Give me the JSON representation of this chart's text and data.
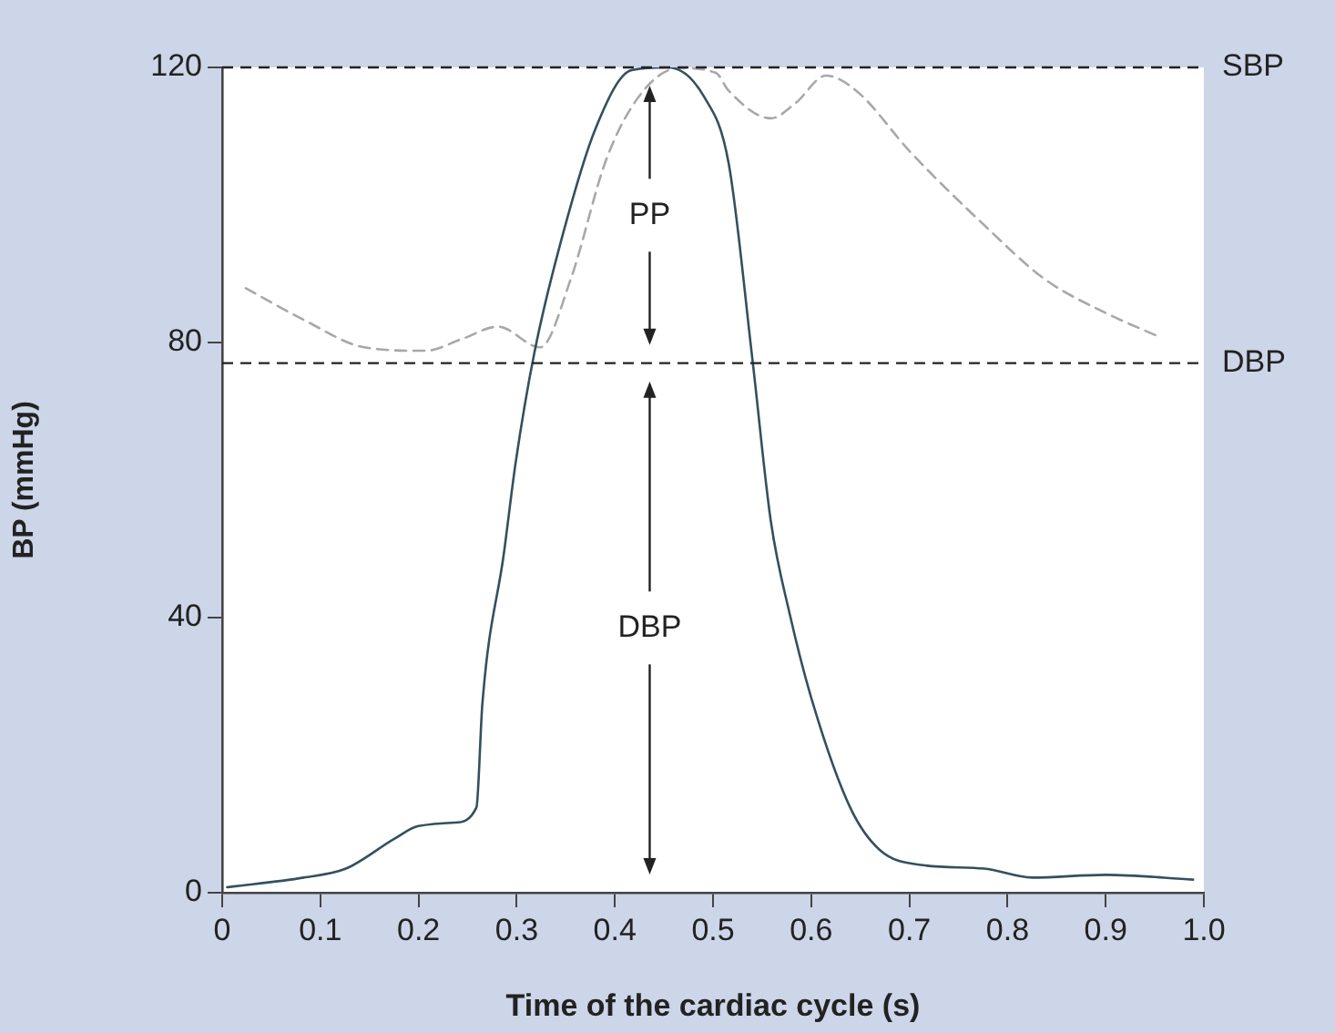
{
  "chart_data": {
    "type": "line",
    "xlabel": "Time of the cardiac cycle (s)",
    "ylabel": "BP (mmHg)",
    "xlim": [
      0,
      1
    ],
    "xticks": [
      0,
      0.1,
      0.2,
      0.3,
      0.4,
      0.5,
      0.6,
      0.7,
      0.8,
      0.9,
      {
        "value": 1,
        "label": "1.0"
      }
    ],
    "ylim": [
      0,
      120
    ],
    "yticks": [
      0,
      40,
      80,
      120
    ],
    "grid": false,
    "legend": false,
    "marker": "none",
    "series": [
      {
        "color": "#34505e",
        "line_style": "solid",
        "x": [
          0.005,
          0.083,
          0.126,
          0.176,
          0.2,
          0.237,
          0.259,
          0.265,
          0.287,
          0.299,
          0.318,
          0.343,
          0.38,
          0.417,
          0.454,
          0.491,
          0.516,
          0.54,
          0.559,
          0.578,
          0.602,
          0.64,
          0.67,
          0.714,
          0.776,
          0.825,
          0.9,
          0.989
        ],
        "values": [
          0.8,
          2.2,
          3.5,
          7.9,
          9.7,
          10.2,
          12.4,
          27.4,
          49.4,
          62.6,
          78.5,
          93.6,
          111,
          119.6,
          120,
          115.7,
          106,
          77.7,
          53.9,
          40.6,
          27.4,
          12.3,
          6.2,
          4,
          3.5,
          2.2,
          2.6,
          1.9
        ]
      },
      {
        "color": "#a8a8a8",
        "line_style": "dashed",
        "x": [
          0.024,
          0.083,
          0.145,
          0.207,
          0.244,
          0.281,
          0.324,
          0.355,
          0.392,
          0.429,
          0.466,
          0.503,
          0.516,
          0.559,
          0.584,
          0.615,
          0.646,
          0.701,
          0.776,
          0.838,
          0.9,
          0.955
        ],
        "values": [
          87.9,
          83.3,
          79.3,
          78.8,
          80.5,
          82.3,
          79.3,
          89.2,
          106.9,
          116.6,
          119.9,
          119.2,
          116.6,
          112.6,
          114.8,
          118.8,
          116.6,
          107.7,
          97.1,
          89.2,
          84.3,
          80.8
        ]
      }
    ],
    "ref_lines": [
      {
        "axis": "y",
        "value": 120,
        "label": "SBP",
        "color": "#222222",
        "line_style": "dashed"
      },
      {
        "axis": "y",
        "value": 77,
        "label": "DBP",
        "color": "#222222",
        "line_style": "dashed"
      }
    ],
    "annotations": [
      "PP",
      "DBP"
    ]
  }
}
